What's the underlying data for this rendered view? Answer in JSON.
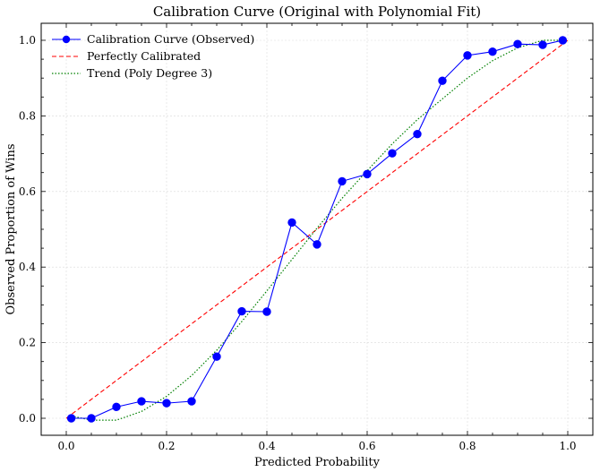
{
  "chart_data": {
    "type": "line",
    "title": "Calibration Curve (Original with Polynomial Fit)",
    "xlabel": "Predicted Probability",
    "ylabel": "Observed Proportion of Wins",
    "xlim": [
      -0.05,
      1.05
    ],
    "ylim": [
      -0.045,
      1.045
    ],
    "xticks": [
      0.0,
      0.2,
      0.4,
      0.6,
      0.8,
      1.0
    ],
    "xtick_labels": [
      "0.0",
      "0.2",
      "0.4",
      "0.6",
      "0.8",
      "1.0"
    ],
    "yticks": [
      0.0,
      0.2,
      0.4,
      0.6,
      0.8,
      1.0
    ],
    "ytick_labels": [
      "0.0",
      "0.2",
      "0.4",
      "0.6",
      "0.8",
      "1.0"
    ],
    "grid": true,
    "legend_position": "top-left",
    "series": [
      {
        "name": "Calibration Curve (Observed)",
        "style": "solid-marker",
        "color": "#0000ff",
        "x": [
          0.01,
          0.05,
          0.1,
          0.15,
          0.2,
          0.25,
          0.3,
          0.35,
          0.4,
          0.45,
          0.5,
          0.55,
          0.6,
          0.65,
          0.7,
          0.75,
          0.8,
          0.85,
          0.9,
          0.95,
          0.99
        ],
        "y": [
          0.0,
          0.0,
          0.03,
          0.045,
          0.04,
          0.045,
          0.163,
          0.283,
          0.282,
          0.518,
          0.46,
          0.627,
          0.646,
          0.701,
          0.752,
          0.893,
          0.96,
          0.97,
          0.99,
          0.988,
          1.0
        ]
      },
      {
        "name": "Perfectly Calibrated",
        "style": "dashed",
        "color": "#ff0000",
        "x": [
          0.0,
          1.0
        ],
        "y": [
          0.0,
          1.0
        ]
      },
      {
        "name": "Trend (Poly Degree 3)",
        "style": "dotted",
        "color": "#008000",
        "x": [
          0.01,
          0.05,
          0.1,
          0.15,
          0.2,
          0.25,
          0.3,
          0.35,
          0.4,
          0.45,
          0.5,
          0.55,
          0.6,
          0.65,
          0.7,
          0.75,
          0.8,
          0.85,
          0.9,
          0.95,
          0.99
        ],
        "y": [
          0.006,
          -0.005,
          -0.005,
          0.018,
          0.058,
          0.113,
          0.18,
          0.256,
          0.337,
          0.42,
          0.503,
          0.582,
          0.655,
          0.726,
          0.79,
          0.845,
          0.9,
          0.946,
          0.98,
          1.0,
          1.0
        ]
      }
    ]
  }
}
